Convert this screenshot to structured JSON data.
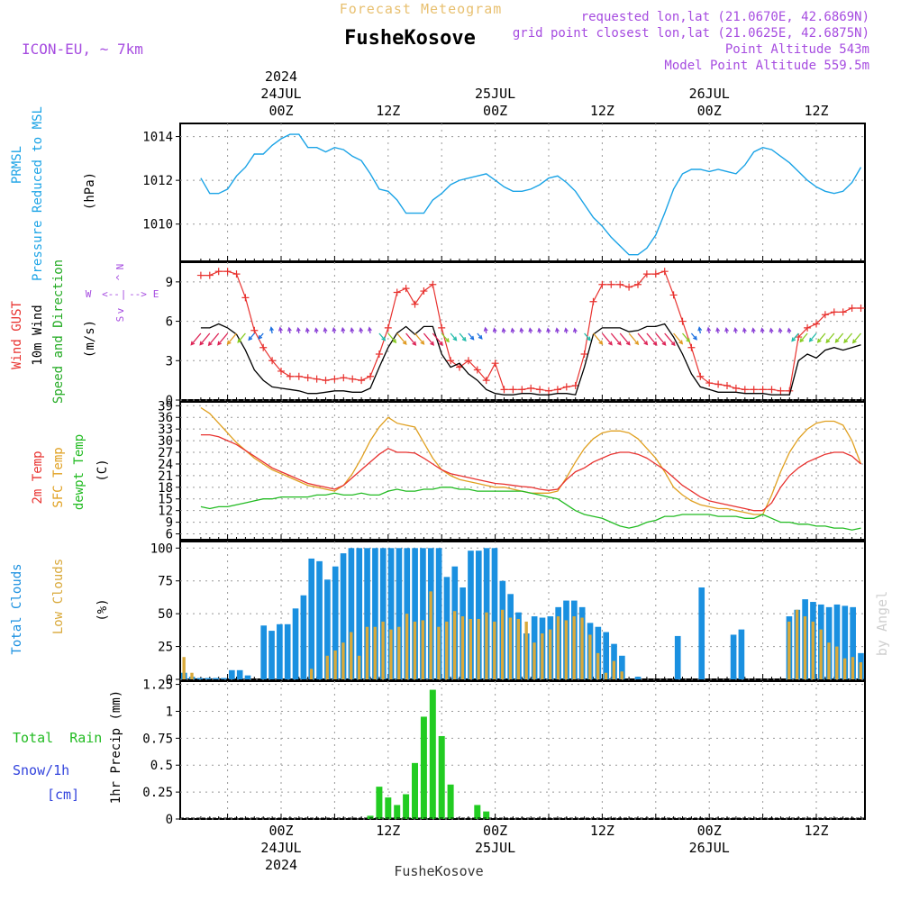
{
  "header": {
    "product_title": "Forecast Meteogram",
    "location": "FusheKosove",
    "model": "ICON-EU, ~ 7km",
    "requested_point": "requested lon,lat (21.0670E, 42.6869N)",
    "grid_point": "grid point closest lon,lat (21.0625E, 42.6875N)",
    "point_altitude": "Point Altitude 543m",
    "model_point_altitude": "Model Point Altitude 559.5m",
    "watermark": "by Angel",
    "footer_location": "FusheKosove"
  },
  "time_axis": {
    "start": "2024-07-23T15:00Z",
    "step_hours": 1,
    "top_labels": [
      {
        "hour": 9,
        "lines": [
          "2024",
          "24JUL",
          "00Z"
        ]
      },
      {
        "hour": 21,
        "lines": [
          "12Z"
        ]
      },
      {
        "hour": 33,
        "lines": [
          "25JUL",
          "00Z"
        ]
      },
      {
        "hour": 45,
        "lines": [
          "12Z"
        ]
      },
      {
        "hour": 57,
        "lines": [
          "26JUL",
          "00Z"
        ]
      },
      {
        "hour": 69,
        "lines": [
          "12Z"
        ]
      }
    ],
    "bottom_labels": [
      {
        "hour": 9,
        "lines": [
          "00Z",
          "24JUL",
          "2024"
        ]
      },
      {
        "hour": 21,
        "lines": [
          "12Z"
        ]
      },
      {
        "hour": 33,
        "lines": [
          "00Z",
          "25JUL"
        ]
      },
      {
        "hour": 45,
        "lines": [
          "12Z"
        ]
      },
      {
        "hour": 57,
        "lines": [
          "00Z",
          "26JUL"
        ]
      },
      {
        "hour": 69,
        "lines": [
          "12Z"
        ]
      }
    ]
  },
  "colors": {
    "pressure": "#1aa3e6",
    "gust": "#e8322f",
    "wind": "#000000",
    "direction_label": "#22aa22",
    "compass": "#a64ce0",
    "t2m": "#e8322f",
    "sfc": "#e0a020",
    "dew": "#22bb22",
    "total_cloud": "#1a90e0",
    "low_cloud": "#d9a93a",
    "rain": "#22cc22",
    "snow": "#3344dd",
    "header_purple": "#a64ce0",
    "header_title": "#e8c070",
    "grid": "#999999"
  },
  "panels": {
    "pressure": {
      "labels": [
        "PRMSL",
        "Pressure Reduced to MSL"
      ],
      "unit": "(hPa)",
      "ticks": [
        "1010",
        "1012",
        "1014"
      ]
    },
    "wind": {
      "labels": [
        "Wind GUST",
        "10m Wind",
        "Speed and Direction"
      ],
      "unit": "(m/s)",
      "ticks": [
        "0",
        "3",
        "6",
        "9"
      ],
      "compass": {
        "n": "N",
        "s": "S",
        "w": "W",
        "e": "E",
        "ns_top": "^",
        "ns_bottom": "v",
        "we_left": "<--",
        "we_right": "-->",
        "center": "|"
      }
    },
    "temperature": {
      "labels": [
        "2m Temp",
        "SFC Temp",
        "dewpt Temp"
      ],
      "unit": "(C)",
      "ticks": [
        "6",
        "9",
        "12",
        "15",
        "18",
        "21",
        "24",
        "27",
        "30",
        "33",
        "36",
        "39"
      ]
    },
    "clouds": {
      "labels": [
        "Total Clouds",
        "Low Clouds"
      ],
      "unit": "(%)",
      "ticks": [
        "0",
        "25",
        "50",
        "75",
        "100"
      ]
    },
    "precip": {
      "labels": [
        "Total  Rain",
        "Snow/1h",
        "[cm]"
      ],
      "unit": "1hr Precip (mm)",
      "ticks": [
        "0",
        "0.25",
        "0.5",
        "0.75",
        "1",
        "1.25"
      ]
    }
  },
  "chart_data": [
    {
      "type": "line",
      "ylabel": "Pressure Reduced to MSL (hPa)",
      "ylim": [
        1008.3,
        1014.6
      ],
      "series": [
        {
          "name": "PRMSL",
          "values": [
            1012.1,
            1011.4,
            1011.4,
            1011.6,
            1012.2,
            1012.6,
            1013.2,
            1013.2,
            1013.6,
            1013.9,
            1014.1,
            1014.1,
            1013.5,
            1013.5,
            1013.3,
            1013.5,
            1013.4,
            1013.1,
            1012.9,
            1012.3,
            1011.6,
            1011.5,
            1011.1,
            1010.5,
            1010.5,
            1010.5,
            1011.1,
            1011.4,
            1011.8,
            1012.0,
            1012.1,
            1012.2,
            1012.3,
            1012.0,
            1011.7,
            1011.5,
            1011.5,
            1011.6,
            1011.8,
            1012.1,
            1012.2,
            1011.9,
            1011.5,
            1010.9,
            1010.3,
            1009.9,
            1009.4,
            1009.0,
            1008.6,
            1008.6,
            1008.9,
            1009.5,
            1010.5,
            1011.6,
            1012.3,
            1012.5,
            1012.5,
            1012.4,
            1012.5,
            1012.4,
            1012.3,
            1012.7,
            1013.3,
            1013.5,
            1013.4,
            1013.1,
            1012.8,
            1012.4,
            1012.0,
            1011.7,
            1011.5,
            1011.4,
            1011.5,
            1011.9,
            1012.6
          ]
        }
      ]
    },
    {
      "type": "line",
      "ylabel": "Wind (m/s)",
      "ylim": [
        0,
        10.5
      ],
      "series": [
        {
          "name": "Wind GUST",
          "values": [
            9.5,
            9.5,
            9.8,
            9.8,
            9.6,
            7.8,
            5.3,
            4.0,
            3.0,
            2.2,
            1.8,
            1.8,
            1.7,
            1.6,
            1.5,
            1.6,
            1.7,
            1.6,
            1.5,
            1.8,
            3.5,
            5.5,
            8.2,
            8.5,
            7.3,
            8.3,
            8.8,
            5.5,
            3.0,
            2.5,
            3.0,
            2.3,
            1.5,
            2.8,
            0.8,
            0.8,
            0.8,
            0.9,
            0.8,
            0.7,
            0.8,
            1.0,
            1.1,
            3.5,
            7.5,
            8.8,
            8.8,
            8.8,
            8.6,
            8.8,
            9.6,
            9.6,
            9.8,
            8.0,
            6.0,
            4.0,
            1.8,
            1.3,
            1.2,
            1.1,
            0.9,
            0.8,
            0.8,
            0.8,
            0.8,
            0.7,
            0.7,
            4.8,
            5.5,
            5.8,
            6.5,
            6.7,
            6.7,
            7.0,
            7.0
          ]
        },
        {
          "name": "10m Wind",
          "values": [
            5.5,
            5.5,
            5.8,
            5.5,
            5.0,
            3.8,
            2.3,
            1.5,
            1.0,
            0.9,
            0.8,
            0.7,
            0.5,
            0.5,
            0.6,
            0.7,
            0.7,
            0.6,
            0.6,
            0.9,
            2.5,
            4.0,
            5.1,
            5.6,
            5.0,
            5.6,
            5.6,
            3.5,
            2.5,
            2.8,
            2.0,
            1.5,
            0.8,
            0.5,
            0.4,
            0.4,
            0.5,
            0.5,
            0.4,
            0.4,
            0.5,
            0.5,
            0.4,
            2.5,
            5.0,
            5.5,
            5.5,
            5.5,
            5.2,
            5.3,
            5.6,
            5.6,
            5.8,
            4.8,
            3.5,
            2.0,
            1.0,
            0.8,
            0.6,
            0.6,
            0.6,
            0.5,
            0.5,
            0.5,
            0.4,
            0.4,
            0.4,
            3.0,
            3.5,
            3.2,
            3.8,
            4.0,
            3.8,
            4.0,
            4.2
          ]
        }
      ],
      "direction_barbs": "wind direction arrows drawn per hour, coloured by speed"
    },
    {
      "type": "line",
      "ylabel": "Temperature (C)",
      "ylim": [
        4.5,
        40
      ],
      "series": [
        {
          "name": "2m Temp",
          "values": [
            31.5,
            31.5,
            31.0,
            30.0,
            29.0,
            27.5,
            26.0,
            24.5,
            23.0,
            22.0,
            21.0,
            20.0,
            19.0,
            18.5,
            18.0,
            17.5,
            18.5,
            20.5,
            22.5,
            24.5,
            26.5,
            28.0,
            27.0,
            27.0,
            26.8,
            25.5,
            24.0,
            22.5,
            21.5,
            21.0,
            20.5,
            20.0,
            19.5,
            19.0,
            18.8,
            18.5,
            18.2,
            18.0,
            17.5,
            17.2,
            17.5,
            20.0,
            22.0,
            23.0,
            24.5,
            25.5,
            26.5,
            27.0,
            27.0,
            26.5,
            25.5,
            24.0,
            22.5,
            20.5,
            18.5,
            17.0,
            15.5,
            14.5,
            14.0,
            13.5,
            13.0,
            12.5,
            12.0,
            12.0,
            14.0,
            18.0,
            21.0,
            23.0,
            24.5,
            25.5,
            26.5,
            27.0,
            27.0,
            26.0,
            24.0
          ]
        },
        {
          "name": "SFC Temp",
          "values": [
            38.5,
            37.0,
            34.5,
            32.0,
            29.5,
            27.5,
            25.5,
            24.0,
            22.5,
            21.5,
            20.5,
            19.5,
            18.5,
            18.0,
            17.5,
            17.0,
            18.5,
            21.5,
            25.5,
            30.0,
            33.5,
            36.0,
            34.5,
            34.0,
            33.5,
            29.5,
            25.5,
            22.5,
            21.0,
            20.0,
            19.5,
            19.0,
            18.5,
            18.0,
            18.0,
            17.5,
            17.0,
            16.5,
            16.5,
            16.5,
            17.0,
            20.5,
            24.5,
            28.0,
            30.5,
            32.0,
            32.5,
            32.5,
            32.0,
            30.5,
            28.0,
            25.5,
            22.0,
            18.0,
            16.0,
            14.5,
            13.5,
            13.0,
            12.5,
            12.5,
            12.0,
            11.5,
            11.0,
            11.0,
            16.0,
            22.0,
            27.0,
            30.5,
            33.0,
            34.5,
            35.0,
            35.0,
            34.0,
            30.0,
            24.0
          ]
        },
        {
          "name": "dewpt Temp",
          "values": [
            13.0,
            12.5,
            13.0,
            13.0,
            13.5,
            14.0,
            14.5,
            15.0,
            15.0,
            15.5,
            15.5,
            15.5,
            15.5,
            16.0,
            16.0,
            16.5,
            16.0,
            16.0,
            16.5,
            16.0,
            16.0,
            17.0,
            17.5,
            17.0,
            17.0,
            17.5,
            17.5,
            18.0,
            18.0,
            17.5,
            17.5,
            17.0,
            17.0,
            17.0,
            17.0,
            17.0,
            17.0,
            16.5,
            16.0,
            15.5,
            15.0,
            13.5,
            12.0,
            11.0,
            10.5,
            10.0,
            9.0,
            8.0,
            7.5,
            8.0,
            9.0,
            9.5,
            10.5,
            10.5,
            11.0,
            11.0,
            11.0,
            11.0,
            10.5,
            10.5,
            10.5,
            10.0,
            10.0,
            11.0,
            10.0,
            9.0,
            9.0,
            8.5,
            8.5,
            8.0,
            8.0,
            7.5,
            7.5,
            7.0,
            7.5
          ]
        }
      ]
    },
    {
      "type": "bar",
      "ylabel": "Clouds (%)",
      "ylim": [
        0,
        105
      ],
      "series": [
        {
          "name": "Total Clouds",
          "values": [
            5,
            2,
            1,
            1,
            1,
            1,
            7,
            7,
            3,
            0,
            41,
            37,
            42,
            42,
            54,
            64,
            92,
            90,
            76,
            86,
            96,
            100,
            100,
            100,
            100,
            100,
            100,
            100,
            100,
            100,
            100,
            100,
            100,
            78,
            86,
            70,
            98,
            98,
            100,
            100,
            75,
            65,
            51,
            35,
            48,
            47,
            48,
            55,
            60,
            60,
            55,
            43,
            40,
            36,
            27,
            18,
            0,
            2,
            0,
            0,
            0,
            0,
            33,
            0,
            0,
            70,
            0,
            0,
            0,
            34,
            38,
            0,
            0,
            0,
            0,
            0,
            48,
            53,
            61,
            59,
            57,
            55,
            57,
            56,
            55,
            20
          ]
        },
        {
          "name": "Low Clouds",
          "values": [
            17,
            5,
            0,
            0,
            0,
            0,
            0,
            0,
            0,
            0,
            0,
            0,
            0,
            0,
            0,
            0,
            8,
            0,
            18,
            22,
            28,
            36,
            18,
            40,
            40,
            44,
            38,
            40,
            50,
            44,
            45,
            67,
            40,
            44,
            52,
            48,
            46,
            46,
            51,
            44,
            53,
            47,
            46,
            44,
            28,
            35,
            38,
            48,
            45,
            48,
            47,
            34,
            20,
            5,
            14,
            6,
            0,
            0,
            0,
            0,
            0,
            0,
            0,
            0,
            0,
            0,
            0,
            0,
            0,
            0,
            0,
            0,
            0,
            0,
            0,
            0,
            44,
            53,
            48,
            44,
            38,
            28,
            25,
            16,
            17,
            13
          ]
        }
      ]
    },
    {
      "type": "bar",
      "ylabel": "1hr Precip (mm)",
      "ylim": [
        0,
        1.28
      ],
      "series": [
        {
          "name": "Total Rain",
          "values": [
            0,
            0,
            0,
            0,
            0,
            0,
            0,
            0,
            0,
            0,
            0,
            0,
            0,
            0,
            0,
            0,
            0,
            0,
            0,
            0.03,
            0.3,
            0.2,
            0.13,
            0.23,
            0.52,
            0.95,
            1.2,
            0.77,
            0.32,
            0,
            0,
            0.13,
            0.07,
            0,
            0,
            0,
            0,
            0,
            0,
            0,
            0,
            0,
            0,
            0,
            0,
            0,
            0,
            0,
            0,
            0,
            0,
            0,
            0,
            0,
            0,
            0,
            0,
            0,
            0,
            0,
            0,
            0,
            0,
            0,
            0,
            0,
            0,
            0,
            0,
            0,
            0,
            0,
            0,
            0,
            0
          ]
        },
        {
          "name": "Snow/1h",
          "values": [
            0,
            0,
            0,
            0,
            0,
            0,
            0,
            0,
            0,
            0,
            0,
            0,
            0,
            0,
            0,
            0,
            0,
            0,
            0,
            0,
            0,
            0,
            0,
            0,
            0,
            0,
            0,
            0,
            0,
            0,
            0,
            0,
            0,
            0,
            0,
            0,
            0,
            0,
            0,
            0,
            0,
            0,
            0,
            0,
            0,
            0,
            0,
            0,
            0,
            0,
            0,
            0,
            0,
            0,
            0,
            0,
            0,
            0,
            0,
            0,
            0,
            0,
            0,
            0,
            0,
            0,
            0,
            0,
            0,
            0,
            0,
            0,
            0,
            0,
            0
          ]
        }
      ]
    }
  ]
}
